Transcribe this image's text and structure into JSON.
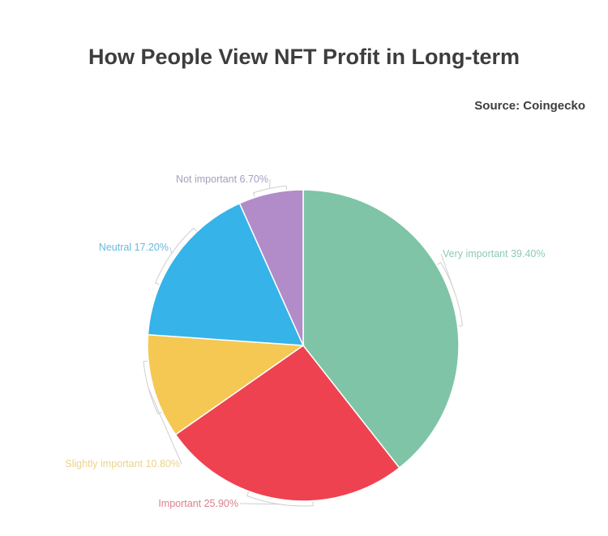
{
  "title": "How People View NFT Profit in Long-term",
  "source": "Source: Coingecko",
  "chart_data": {
    "type": "pie",
    "title": "How People View NFT Profit in Long-term",
    "subtitle": "Source: Coingecko",
    "categories": [
      "Very important",
      "Important",
      "Slightly important",
      "Neutral",
      "Not important"
    ],
    "values": [
      39.4,
      25.9,
      10.8,
      17.2,
      6.7
    ],
    "colors": [
      "#7fc4a6",
      "#ee4250",
      "#f5c853",
      "#36b3e8",
      "#b18cc9"
    ],
    "labels": [
      "Very important 39.40%",
      "Important 25.90%",
      "Slightly important 10.80%",
      "Neutral 17.20%",
      "Not important 6.70%"
    ],
    "label_colors": [
      "#8ccbb0",
      "#d9818a",
      "#ecd28a",
      "#6cb8dc",
      "#a3a0bd"
    ],
    "start_angle_deg": 0,
    "direction": "clockwise",
    "legend": "none (inline labels)"
  }
}
